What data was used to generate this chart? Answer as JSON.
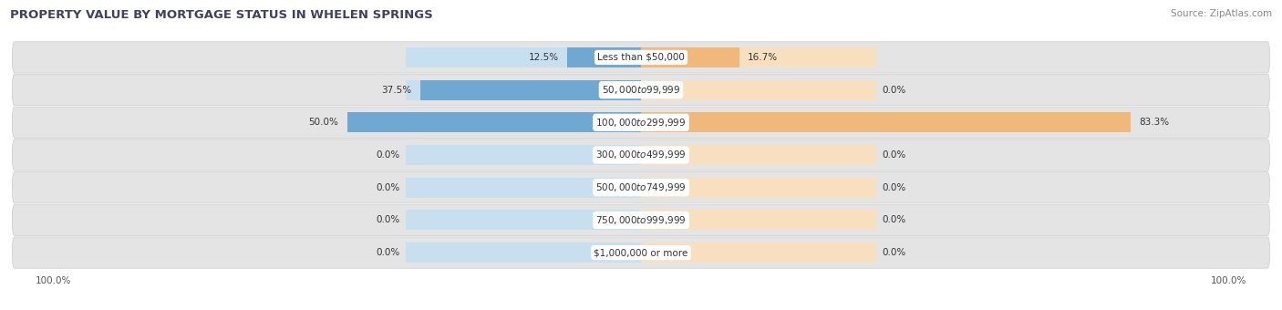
{
  "title": "PROPERTY VALUE BY MORTGAGE STATUS IN WHELEN SPRINGS",
  "source": "Source: ZipAtlas.com",
  "categories": [
    "Less than $50,000",
    "$50,000 to $99,999",
    "$100,000 to $299,999",
    "$300,000 to $499,999",
    "$500,000 to $749,999",
    "$750,000 to $999,999",
    "$1,000,000 or more"
  ],
  "without_mortgage": [
    12.5,
    37.5,
    50.0,
    0.0,
    0.0,
    0.0,
    0.0
  ],
  "with_mortgage": [
    16.7,
    0.0,
    83.3,
    0.0,
    0.0,
    0.0,
    0.0
  ],
  "blue_color": "#6fa8d0",
  "orange_color": "#f0b87a",
  "bar_bg_blue": "#c8dff0",
  "bar_bg_orange": "#f7dfc0",
  "row_bg_color": "#e4e4e4",
  "xlim": 100,
  "bg_bar_extent": 40,
  "title_fontsize": 9.5,
  "source_fontsize": 7.5,
  "label_fontsize": 7.5,
  "value_fontsize": 7.5,
  "bar_height": 0.62,
  "bg_bar_height": 0.62
}
